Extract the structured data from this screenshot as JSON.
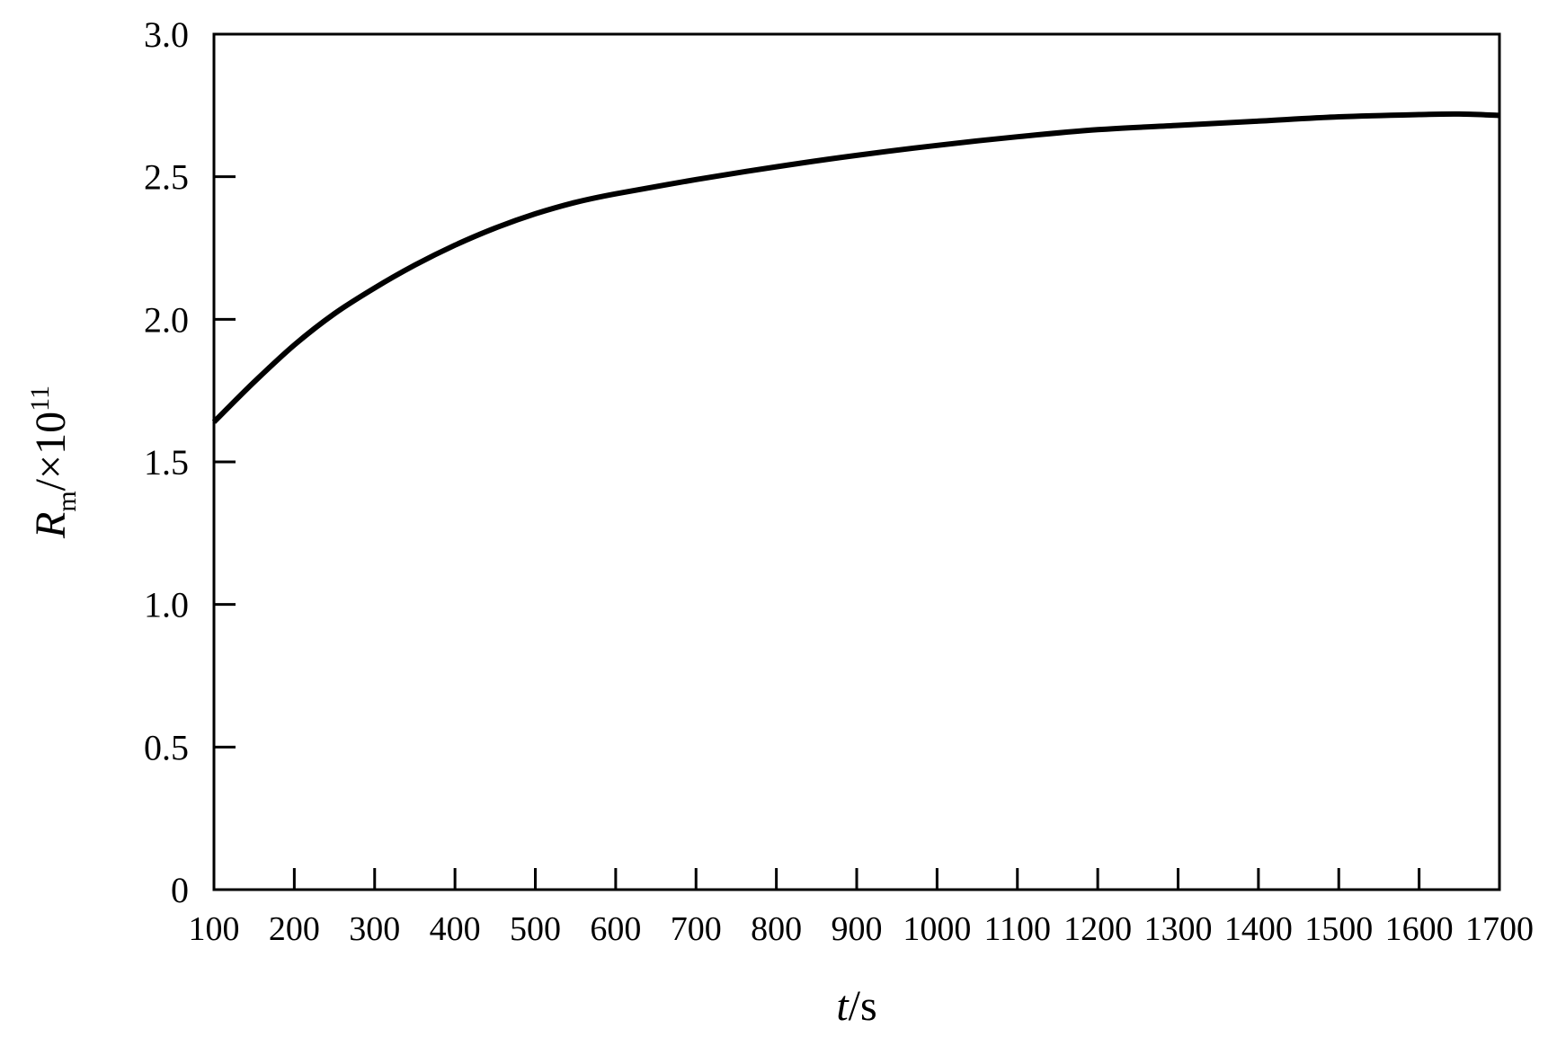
{
  "chart_data": {
    "type": "line",
    "title": "",
    "xlabel": {
      "var": "t",
      "unit": "/s"
    },
    "ylabel": {
      "var": "R",
      "sub": "m",
      "rest": "/×10",
      "sup": "11"
    },
    "xlim": [
      100,
      1700
    ],
    "ylim": [
      0,
      3.0
    ],
    "x_ticks": [
      100,
      200,
      300,
      400,
      500,
      600,
      700,
      800,
      900,
      1000,
      1100,
      1200,
      1300,
      1400,
      1500,
      1600,
      1700
    ],
    "x_tick_labels": [
      "100",
      "200",
      "300",
      "400",
      "500",
      "600",
      "700",
      "800",
      "900",
      "1000",
      "1100",
      "1200",
      "1300",
      "1400",
      "1500",
      "1600",
      "1700"
    ],
    "y_ticks": [
      0,
      0.5,
      1.0,
      1.5,
      2.0,
      2.5,
      3.0
    ],
    "y_tick_labels": [
      "0",
      "0.5",
      "1.0",
      "1.5",
      "2.0",
      "2.5",
      "3.0"
    ],
    "grid": false,
    "series": [
      {
        "color": "#000000",
        "x": [
          100,
          150,
          200,
          250,
          300,
          350,
          400,
          450,
          500,
          550,
          600,
          700,
          800,
          900,
          1000,
          1100,
          1200,
          1300,
          1400,
          1500,
          1600,
          1650,
          1700
        ],
        "y": [
          1.64,
          1.78,
          1.91,
          2.02,
          2.11,
          2.19,
          2.26,
          2.32,
          2.37,
          2.41,
          2.44,
          2.49,
          2.535,
          2.575,
          2.61,
          2.64,
          2.665,
          2.68,
          2.695,
          2.71,
          2.718,
          2.72,
          2.715
        ]
      }
    ]
  }
}
